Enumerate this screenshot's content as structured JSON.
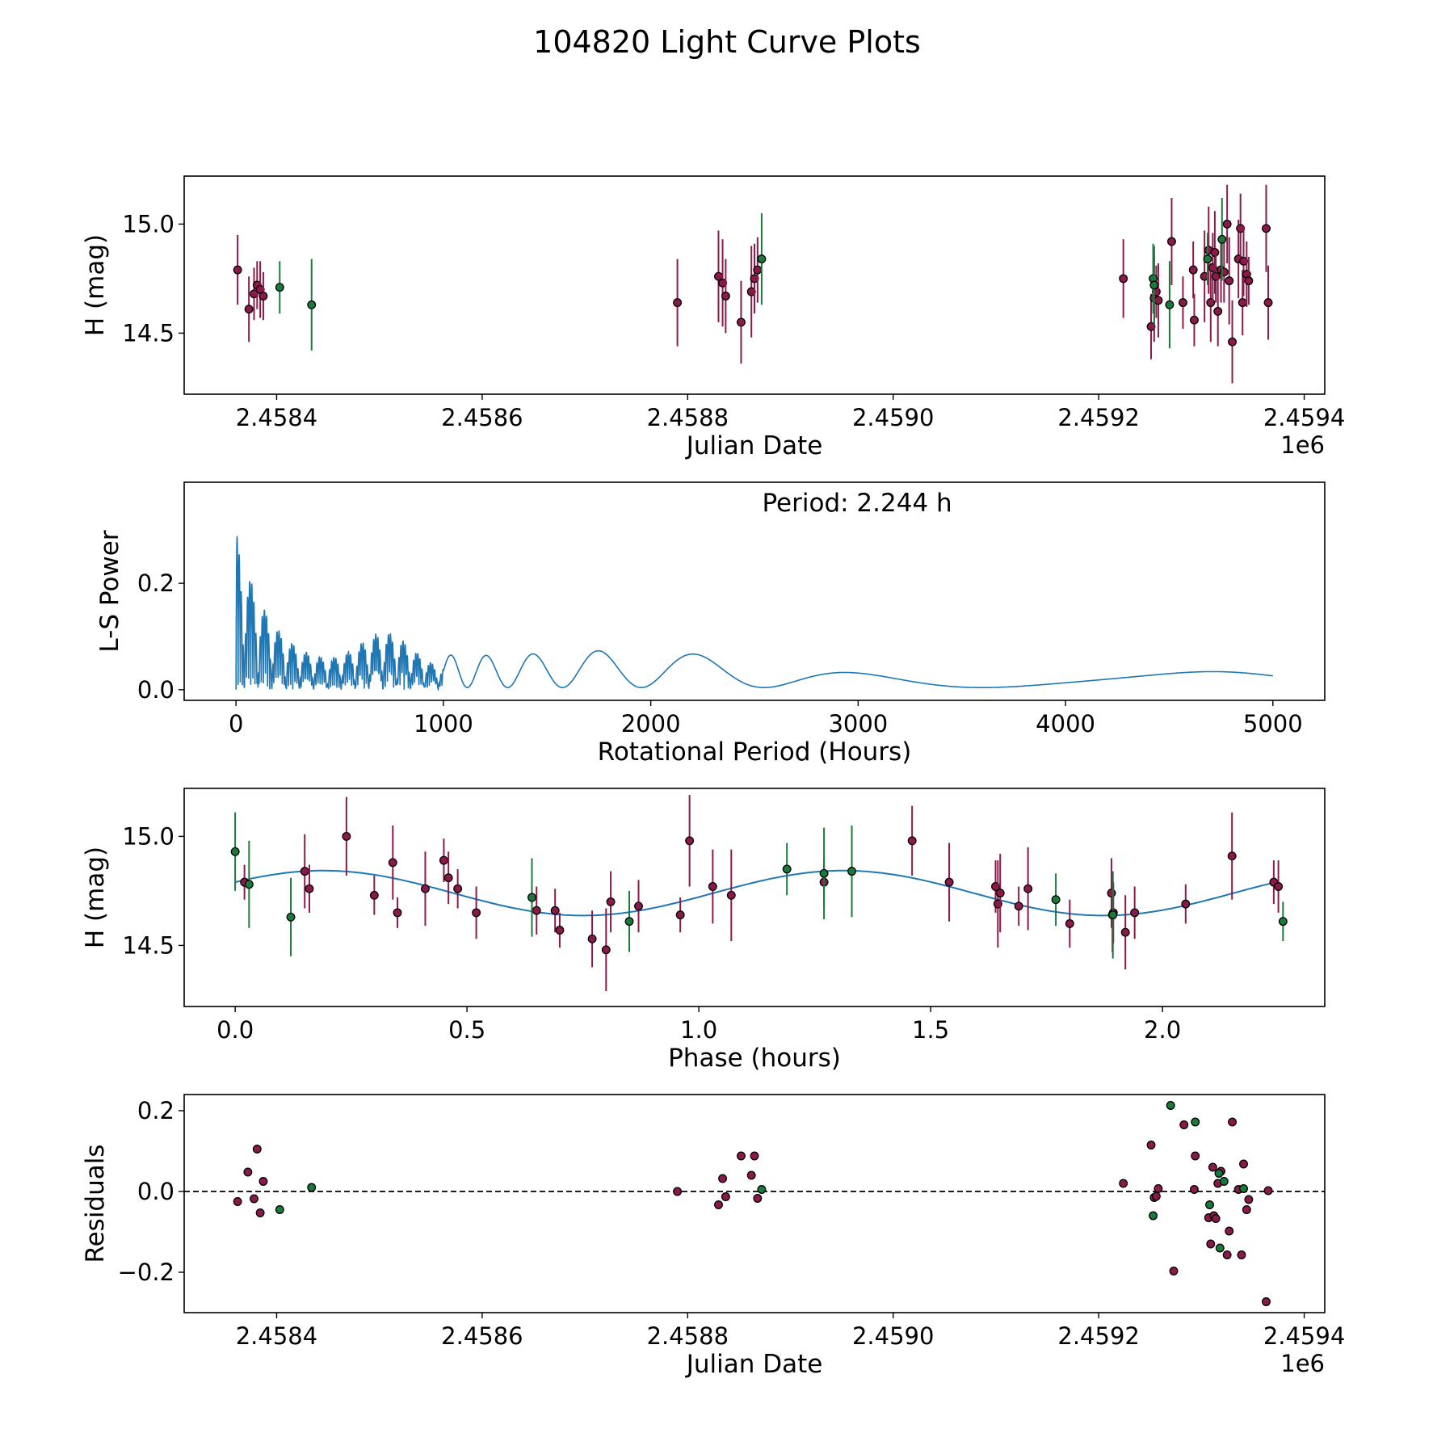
{
  "figure_title": "104820 Light Curve Plots",
  "colors": {
    "primary": "#8b1a4a",
    "secondary": "#1a7a3c",
    "line": "#1f77b4"
  },
  "chart_data": [
    {
      "type": "scatter",
      "name": "light-curve",
      "xlabel": "Julian Date",
      "ylabel": "H (mag)",
      "x_offset_label": "1e6",
      "xlim": [
        2.45831,
        2.45942
      ],
      "ylim": [
        14.22,
        15.22
      ],
      "y_inverted": false,
      "xticks": [
        2.4584,
        2.4586,
        2.4588,
        2.459,
        2.4592,
        2.4594
      ],
      "xtick_labels": [
        "2.4584",
        "2.4586",
        "2.4588",
        "2.4590",
        "2.4592",
        "2.4594"
      ],
      "yticks": [
        14.5,
        15.0
      ],
      "ytick_labels": [
        "14.5",
        "15.0"
      ],
      "series": [
        {
          "name": "band-1",
          "color": "primary",
          "points": [
            {
              "x": 2.458362,
              "y": 14.79,
              "err": 0.16
            },
            {
              "x": 2.458373,
              "y": 14.61,
              "err": 0.15
            },
            {
              "x": 2.458378,
              "y": 14.68,
              "err": 0.12
            },
            {
              "x": 2.458381,
              "y": 14.72,
              "err": 0.11
            },
            {
              "x": 2.458384,
              "y": 14.7,
              "err": 0.13
            },
            {
              "x": 2.458387,
              "y": 14.67,
              "err": 0.11
            },
            {
              "x": 2.45879,
              "y": 14.64,
              "err": 0.2
            },
            {
              "x": 2.45883,
              "y": 14.76,
              "err": 0.21
            },
            {
              "x": 2.458834,
              "y": 14.73,
              "err": 0.2
            },
            {
              "x": 2.458837,
              "y": 14.67,
              "err": 0.17
            },
            {
              "x": 2.458852,
              "y": 14.55,
              "err": 0.19
            },
            {
              "x": 2.458862,
              "y": 14.69,
              "err": 0.21
            },
            {
              "x": 2.458865,
              "y": 14.75,
              "err": 0.16
            },
            {
              "x": 2.458868,
              "y": 14.79,
              "err": 0.15
            },
            {
              "x": 2.459224,
              "y": 14.75,
              "err": 0.18
            },
            {
              "x": 2.459251,
              "y": 14.53,
              "err": 0.15
            },
            {
              "x": 2.459254,
              "y": 14.66,
              "err": 0.2
            },
            {
              "x": 2.459256,
              "y": 14.69,
              "err": 0.12
            },
            {
              "x": 2.459258,
              "y": 14.65,
              "err": 0.17
            },
            {
              "x": 2.459271,
              "y": 14.92,
              "err": 0.2
            },
            {
              "x": 2.459282,
              "y": 14.64,
              "err": 0.12
            },
            {
              "x": 2.459292,
              "y": 14.79,
              "err": 0.13
            },
            {
              "x": 2.459293,
              "y": 14.56,
              "err": 0.12
            },
            {
              "x": 2.459303,
              "y": 14.76,
              "err": 0.21
            },
            {
              "x": 2.459307,
              "y": 14.88,
              "err": 0.2
            },
            {
              "x": 2.459309,
              "y": 14.64,
              "err": 0.18
            },
            {
              "x": 2.459311,
              "y": 14.8,
              "err": 0.16
            },
            {
              "x": 2.459313,
              "y": 14.87,
              "err": 0.19
            },
            {
              "x": 2.459314,
              "y": 14.76,
              "err": 0.12
            },
            {
              "x": 2.459316,
              "y": 14.6,
              "err": 0.16
            },
            {
              "x": 2.459319,
              "y": 14.79,
              "err": 0.15
            },
            {
              "x": 2.459322,
              "y": 14.78,
              "err": 0.14
            },
            {
              "x": 2.459325,
              "y": 15.0,
              "err": 0.18
            },
            {
              "x": 2.459327,
              "y": 14.74,
              "err": 0.2
            },
            {
              "x": 2.45933,
              "y": 14.46,
              "err": 0.19
            },
            {
              "x": 2.459336,
              "y": 14.84,
              "err": 0.18
            },
            {
              "x": 2.459338,
              "y": 14.98,
              "err": 0.16
            },
            {
              "x": 2.45934,
              "y": 14.64,
              "err": 0.15
            },
            {
              "x": 2.459341,
              "y": 14.83,
              "err": 0.16
            },
            {
              "x": 2.459344,
              "y": 14.77,
              "err": 0.15
            },
            {
              "x": 2.459346,
              "y": 14.74,
              "err": 0.11
            },
            {
              "x": 2.459363,
              "y": 14.98,
              "err": 0.2
            },
            {
              "x": 2.459365,
              "y": 14.64,
              "err": 0.17
            }
          ]
        },
        {
          "name": "band-2",
          "color": "secondary",
          "points": [
            {
              "x": 2.458403,
              "y": 14.71,
              "err": 0.12
            },
            {
              "x": 2.458434,
              "y": 14.63,
              "err": 0.21
            },
            {
              "x": 2.458872,
              "y": 14.84,
              "err": 0.21
            },
            {
              "x": 2.459253,
              "y": 14.75,
              "err": 0.16
            },
            {
              "x": 2.459254,
              "y": 14.72,
              "err": 0.18
            },
            {
              "x": 2.459269,
              "y": 14.63,
              "err": 0.2
            },
            {
              "x": 2.459306,
              "y": 14.84,
              "err": 0.12
            },
            {
              "x": 2.45932,
              "y": 14.93,
              "err": 0.19
            }
          ]
        }
      ]
    },
    {
      "type": "line",
      "name": "periodogram",
      "xlabel": "Rotational Period (Hours)",
      "ylabel": "L-S Power",
      "annotation": "Period: 2.244 h",
      "xlim": [
        -250,
        5250
      ],
      "ylim": [
        -0.02,
        0.39
      ],
      "xticks": [
        0,
        1000,
        2000,
        3000,
        4000,
        5000
      ],
      "xtick_labels": [
        "0",
        "1000",
        "2000",
        "3000",
        "4000",
        "5000"
      ],
      "yticks": [
        0.0,
        0.2
      ],
      "ytick_labels": [
        "0.0",
        "0.2"
      ],
      "series": [
        {
          "name": "L-S power",
          "color": "line",
          "x_range": [
            0,
            5000
          ]
        }
      ]
    },
    {
      "type": "scatter",
      "name": "phase-fold",
      "xlabel": "Phase (hours)",
      "ylabel": "H (mag)",
      "xlim": [
        -0.11,
        2.35
      ],
      "ylim": [
        14.22,
        15.22
      ],
      "xticks": [
        0.0,
        0.5,
        1.0,
        1.5,
        2.0
      ],
      "xtick_labels": [
        "0.0",
        "0.5",
        "1.0",
        "1.5",
        "2.0"
      ],
      "yticks": [
        14.5,
        15.0
      ],
      "ytick_labels": [
        "14.5",
        "15.0"
      ],
      "model": {
        "period": 2.244,
        "mean": 14.74,
        "amplitude": 0.103,
        "peak_phase": 0.19,
        "color": "line"
      },
      "series": [
        {
          "name": "band-1",
          "color": "primary",
          "points": [
            {
              "x": 0.02,
              "y": 14.79,
              "err": 0.08
            },
            {
              "x": 0.15,
              "y": 14.84,
              "err": 0.17
            },
            {
              "x": 0.16,
              "y": 14.76,
              "err": 0.11
            },
            {
              "x": 0.24,
              "y": 15.0,
              "err": 0.18
            },
            {
              "x": 0.3,
              "y": 14.73,
              "err": 0.09
            },
            {
              "x": 0.34,
              "y": 14.88,
              "err": 0.17
            },
            {
              "x": 0.35,
              "y": 14.65,
              "err": 0.07
            },
            {
              "x": 0.41,
              "y": 14.76,
              "err": 0.17
            },
            {
              "x": 0.45,
              "y": 14.89,
              "err": 0.1
            },
            {
              "x": 0.46,
              "y": 14.81,
              "err": 0.12
            },
            {
              "x": 0.48,
              "y": 14.76,
              "err": 0.09
            },
            {
              "x": 0.52,
              "y": 14.65,
              "err": 0.12
            },
            {
              "x": 0.65,
              "y": 14.66,
              "err": 0.11
            },
            {
              "x": 0.69,
              "y": 14.66,
              "err": 0.1
            },
            {
              "x": 0.7,
              "y": 14.57,
              "err": 0.08
            },
            {
              "x": 0.77,
              "y": 14.53,
              "err": 0.13
            },
            {
              "x": 0.8,
              "y": 14.48,
              "err": 0.19
            },
            {
              "x": 0.81,
              "y": 14.7,
              "err": 0.14
            },
            {
              "x": 0.87,
              "y": 14.68,
              "err": 0.12
            },
            {
              "x": 0.96,
              "y": 14.64,
              "err": 0.08
            },
            {
              "x": 0.98,
              "y": 14.98,
              "err": 0.21
            },
            {
              "x": 1.03,
              "y": 14.77,
              "err": 0.17
            },
            {
              "x": 1.07,
              "y": 14.73,
              "err": 0.21
            },
            {
              "x": 1.27,
              "y": 14.79,
              "err": 0.11
            },
            {
              "x": 1.46,
              "y": 14.98,
              "err": 0.16
            },
            {
              "x": 1.54,
              "y": 14.79,
              "err": 0.18
            },
            {
              "x": 1.64,
              "y": 14.77,
              "err": 0.12
            },
            {
              "x": 1.645,
              "y": 14.69,
              "err": 0.2
            },
            {
              "x": 1.65,
              "y": 14.74,
              "err": 0.18
            },
            {
              "x": 1.69,
              "y": 14.68,
              "err": 0.09
            },
            {
              "x": 1.71,
              "y": 14.76,
              "err": 0.19
            },
            {
              "x": 1.8,
              "y": 14.6,
              "err": 0.11
            },
            {
              "x": 1.89,
              "y": 14.74,
              "err": 0.16
            },
            {
              "x": 1.892,
              "y": 14.64,
              "err": 0.17
            },
            {
              "x": 1.894,
              "y": 14.65,
              "err": 0.14
            },
            {
              "x": 1.92,
              "y": 14.56,
              "err": 0.17
            },
            {
              "x": 1.94,
              "y": 14.65,
              "err": 0.12
            },
            {
              "x": 2.05,
              "y": 14.69,
              "err": 0.09
            },
            {
              "x": 2.15,
              "y": 14.91,
              "err": 0.2
            },
            {
              "x": 2.24,
              "y": 14.79,
              "err": 0.1
            },
            {
              "x": 2.25,
              "y": 14.77,
              "err": 0.12
            }
          ]
        },
        {
          "name": "band-2",
          "color": "secondary",
          "points": [
            {
              "x": 0.0,
              "y": 14.93,
              "err": 0.18
            },
            {
              "x": 0.03,
              "y": 14.78,
              "err": 0.2
            },
            {
              "x": 0.12,
              "y": 14.63,
              "err": 0.18
            },
            {
              "x": 0.64,
              "y": 14.72,
              "err": 0.18
            },
            {
              "x": 0.85,
              "y": 14.61,
              "err": 0.14
            },
            {
              "x": 1.19,
              "y": 14.85,
              "err": 0.12
            },
            {
              "x": 1.27,
              "y": 14.83,
              "err": 0.21
            },
            {
              "x": 1.33,
              "y": 14.84,
              "err": 0.21
            },
            {
              "x": 1.77,
              "y": 14.71,
              "err": 0.12
            },
            {
              "x": 1.893,
              "y": 14.64,
              "err": 0.2
            },
            {
              "x": 2.26,
              "y": 14.61,
              "err": 0.09
            }
          ]
        }
      ]
    },
    {
      "type": "scatter",
      "name": "residuals",
      "xlabel": "Julian Date",
      "ylabel": "Residuals",
      "x_offset_label": "1e6",
      "xlim": [
        2.45831,
        2.45942
      ],
      "ylim": [
        -0.3,
        0.24
      ],
      "xticks": [
        2.4584,
        2.4586,
        2.4588,
        2.459,
        2.4592,
        2.4594
      ],
      "xtick_labels": [
        "2.4584",
        "2.4586",
        "2.4588",
        "2.4590",
        "2.4592",
        "2.4594"
      ],
      "yticks": [
        -0.2,
        0.0,
        0.2
      ],
      "ytick_labels": [
        "−0.2",
        "0.0",
        "0.2"
      ],
      "reference_line": 0.0,
      "series": [
        {
          "name": "band-1",
          "color": "primary",
          "points": [
            {
              "x": 2.458362,
              "y": -0.025
            },
            {
              "x": 2.458372,
              "y": 0.048
            },
            {
              "x": 2.458378,
              "y": -0.018
            },
            {
              "x": 2.458381,
              "y": 0.105
            },
            {
              "x": 2.458384,
              "y": -0.053
            },
            {
              "x": 2.458387,
              "y": 0.025
            },
            {
              "x": 2.45879,
              "y": 0.0
            },
            {
              "x": 2.45883,
              "y": -0.033
            },
            {
              "x": 2.458834,
              "y": 0.032
            },
            {
              "x": 2.458837,
              "y": -0.013
            },
            {
              "x": 2.458852,
              "y": 0.088
            },
            {
              "x": 2.458862,
              "y": 0.04
            },
            {
              "x": 2.458865,
              "y": 0.088
            },
            {
              "x": 2.458868,
              "y": -0.017
            },
            {
              "x": 2.459224,
              "y": 0.02
            },
            {
              "x": 2.459251,
              "y": 0.115
            },
            {
              "x": 2.459254,
              "y": -0.015
            },
            {
              "x": 2.459256,
              "y": -0.012
            },
            {
              "x": 2.459258,
              "y": 0.007
            },
            {
              "x": 2.459273,
              "y": -0.197
            },
            {
              "x": 2.459283,
              "y": 0.165
            },
            {
              "x": 2.459293,
              "y": 0.005
            },
            {
              "x": 2.459294,
              "y": 0.088
            },
            {
              "x": 2.459307,
              "y": -0.065
            },
            {
              "x": 2.459309,
              "y": -0.13
            },
            {
              "x": 2.459311,
              "y": 0.06
            },
            {
              "x": 2.459312,
              "y": -0.06
            },
            {
              "x": 2.459314,
              "y": -0.067
            },
            {
              "x": 2.459316,
              "y": 0.02
            },
            {
              "x": 2.459319,
              "y": 0.05
            },
            {
              "x": 2.459325,
              "y": -0.157
            },
            {
              "x": 2.459327,
              "y": -0.098
            },
            {
              "x": 2.45933,
              "y": 0.172
            },
            {
              "x": 2.459336,
              "y": 0.005
            },
            {
              "x": 2.459339,
              "y": -0.157
            },
            {
              "x": 2.459341,
              "y": 0.068
            },
            {
              "x": 2.459344,
              "y": -0.045
            },
            {
              "x": 2.459346,
              "y": -0.02
            },
            {
              "x": 2.459363,
              "y": -0.273
            },
            {
              "x": 2.459365,
              "y": 0.002
            }
          ]
        },
        {
          "name": "band-2",
          "color": "secondary",
          "points": [
            {
              "x": 2.458403,
              "y": -0.045
            },
            {
              "x": 2.458434,
              "y": 0.01
            },
            {
              "x": 2.458872,
              "y": 0.005
            },
            {
              "x": 2.459253,
              "y": -0.06
            },
            {
              "x": 2.45927,
              "y": 0.213
            },
            {
              "x": 2.459294,
              "y": 0.172
            },
            {
              "x": 2.459308,
              "y": -0.033
            },
            {
              "x": 2.459317,
              "y": 0.045
            },
            {
              "x": 2.459318,
              "y": -0.14
            },
            {
              "x": 2.459322,
              "y": 0.025
            },
            {
              "x": 2.459341,
              "y": 0.007
            }
          ]
        }
      ]
    }
  ]
}
